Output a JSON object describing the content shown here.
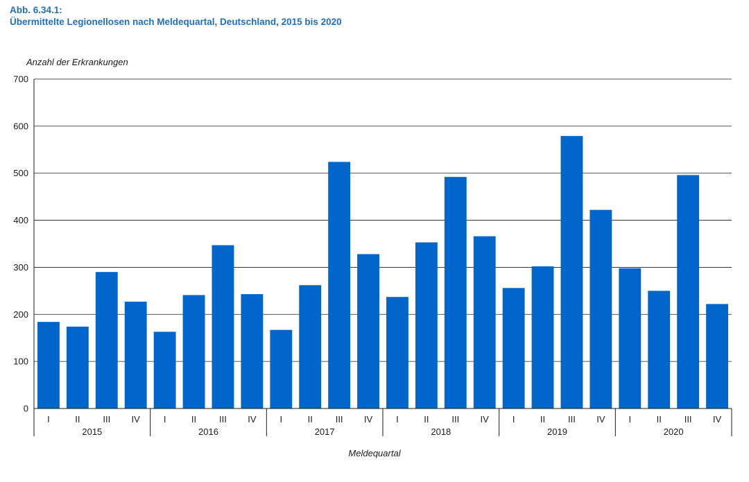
{
  "figure_label": "Abb. 6.34.1:",
  "chart_data": {
    "type": "bar",
    "title": "Übermittelte Legionellosen nach Meldequartal, Deutschland, 2015 bis 2020",
    "ylabel": "Anzahl der Erkrankungen",
    "xlabel": "Meldequartal",
    "ylim": [
      0,
      700
    ],
    "yticks": [
      0,
      100,
      200,
      300,
      400,
      500,
      600,
      700
    ],
    "grid": true,
    "bar_color": "#0066cc",
    "quarters": [
      "I",
      "II",
      "III",
      "IV"
    ],
    "years": [
      "2015",
      "2016",
      "2017",
      "2018",
      "2019",
      "2020"
    ],
    "values": [
      [
        184,
        174,
        290,
        227
      ],
      [
        163,
        241,
        347,
        243
      ],
      [
        167,
        262,
        524,
        328
      ],
      [
        237,
        353,
        492,
        366
      ],
      [
        256,
        302,
        579,
        422
      ],
      [
        298,
        250,
        496,
        222
      ]
    ]
  }
}
